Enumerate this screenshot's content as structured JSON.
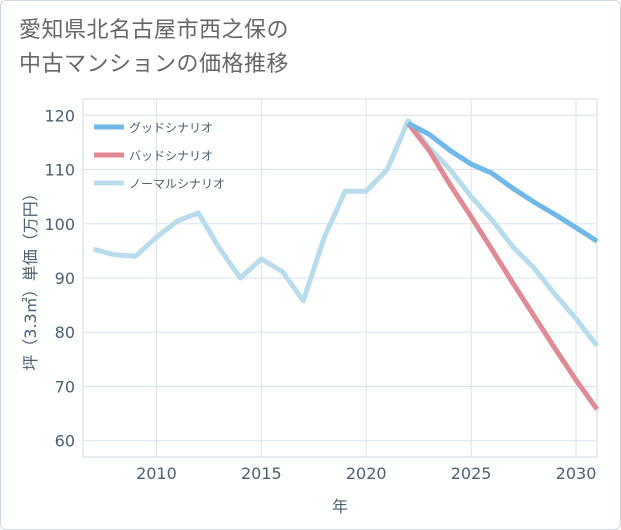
{
  "page": {
    "title_line1": "愛知県北名古屋市西之保の",
    "title_line2": "中古マンションの価格推移"
  },
  "chart_data": {
    "type": "line",
    "title": "愛知県北名古屋市西之保の中古マンションの価格推移",
    "xlabel": "年",
    "ylabel": "坪（3.3㎡）単価（万円）",
    "xlim": [
      2006.5,
      2031
    ],
    "ylim": [
      57,
      123
    ],
    "xticks": [
      2010,
      2015,
      2020,
      2025,
      2030
    ],
    "yticks": [
      60,
      70,
      80,
      90,
      100,
      110,
      120
    ],
    "grid": true,
    "legend_position": "top-left",
    "series": [
      {
        "name": "グッドシナリオ",
        "color": "#6fb8e8",
        "x": [
          2022,
          2023,
          2024,
          2025,
          2026,
          2027,
          2028,
          2029,
          2030,
          2031
        ],
        "values": [
          118.5,
          116.5,
          113.5,
          111,
          109.3,
          106.5,
          104,
          101.7,
          99.3,
          96.8
        ]
      },
      {
        "name": "バッドシナリオ",
        "color": "#e08a93",
        "x": [
          2022,
          2023,
          2024,
          2025,
          2026,
          2027,
          2028,
          2029,
          2030,
          2031
        ],
        "values": [
          118.5,
          113.5,
          107.2,
          101.3,
          95.2,
          89,
          83,
          77,
          71.2,
          65.8
        ]
      },
      {
        "name": "ノーマルシナリオ",
        "color": "#b9dced",
        "x": [
          2007,
          2008,
          2009,
          2010,
          2011,
          2012,
          2013,
          2014,
          2015,
          2016,
          2017,
          2018,
          2019,
          2020,
          2021,
          2022,
          2023,
          2024,
          2025,
          2026,
          2027,
          2028,
          2029,
          2030,
          2031
        ],
        "values": [
          95.3,
          94.3,
          94,
          97.5,
          100.5,
          102,
          95.5,
          90,
          93.5,
          91.2,
          85.8,
          97.5,
          106,
          106,
          110,
          119,
          114,
          110,
          105,
          100.7,
          95.7,
          91.8,
          87,
          82.5,
          77.5
        ]
      }
    ]
  }
}
